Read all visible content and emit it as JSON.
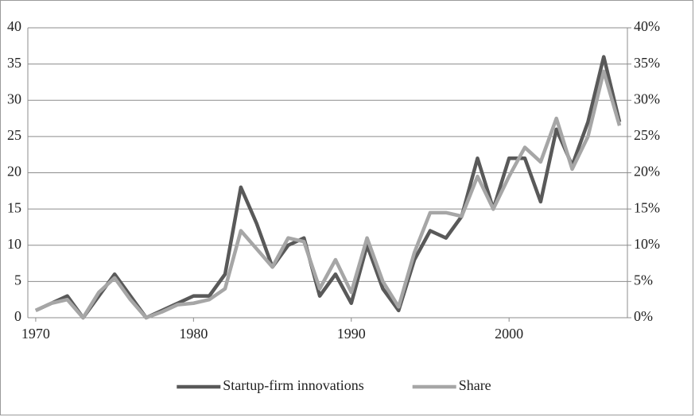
{
  "chart_data": {
    "type": "line",
    "x": [
      1970,
      1971,
      1972,
      1973,
      1974,
      1975,
      1976,
      1977,
      1978,
      1979,
      1980,
      1981,
      1982,
      1983,
      1984,
      1985,
      1986,
      1987,
      1988,
      1989,
      1990,
      1991,
      1992,
      1993,
      1994,
      1995,
      1996,
      1997,
      1998,
      1999,
      2000,
      2001,
      2002,
      2003,
      2004,
      2005,
      2006,
      2007
    ],
    "xlim": [
      1969.5,
      2007.5
    ],
    "xticks": [
      1970,
      1980,
      1990,
      2000
    ],
    "ylim": [
      0,
      40
    ],
    "yticks": [
      0,
      5,
      10,
      15,
      20,
      25,
      30,
      35,
      40
    ],
    "y2lim": [
      0,
      40
    ],
    "y2ticks": [
      {
        "value": 0,
        "label": "0%"
      },
      {
        "value": 5,
        "label": "5%"
      },
      {
        "value": 10,
        "label": "10%"
      },
      {
        "value": 15,
        "label": "15%"
      },
      {
        "value": 20,
        "label": "20%"
      },
      {
        "value": 25,
        "label": "25%"
      },
      {
        "value": 30,
        "label": "30%"
      },
      {
        "value": 35,
        "label": "35%"
      },
      {
        "value": 40,
        "label": "40%"
      }
    ],
    "grid": true,
    "legend": "bottom",
    "series": [
      {
        "name": "Startup-firm innovations",
        "color": "#595959",
        "values": [
          1,
          2,
          3,
          0,
          3,
          6,
          3,
          0,
          1,
          2,
          3,
          3,
          6,
          18,
          13,
          7,
          10,
          11,
          3,
          6,
          2,
          10,
          4,
          1,
          8,
          12,
          11,
          14,
          22,
          15,
          22,
          22,
          16,
          26,
          21,
          27,
          36,
          27
        ]
      },
      {
        "name": "Share",
        "color": "#a6a6a6",
        "axis": "y2",
        "values": [
          1,
          2,
          2.5,
          0,
          3.5,
          5.5,
          2.5,
          0,
          0.8,
          1.8,
          2,
          2.5,
          4,
          12,
          9.5,
          7,
          11,
          10.5,
          4,
          8,
          3.5,
          11,
          5,
          1.5,
          9,
          14.5,
          14.5,
          14,
          19.5,
          15,
          19.5,
          23.5,
          21.5,
          27.5,
          20.5,
          25,
          34,
          26.5
        ]
      }
    ]
  }
}
